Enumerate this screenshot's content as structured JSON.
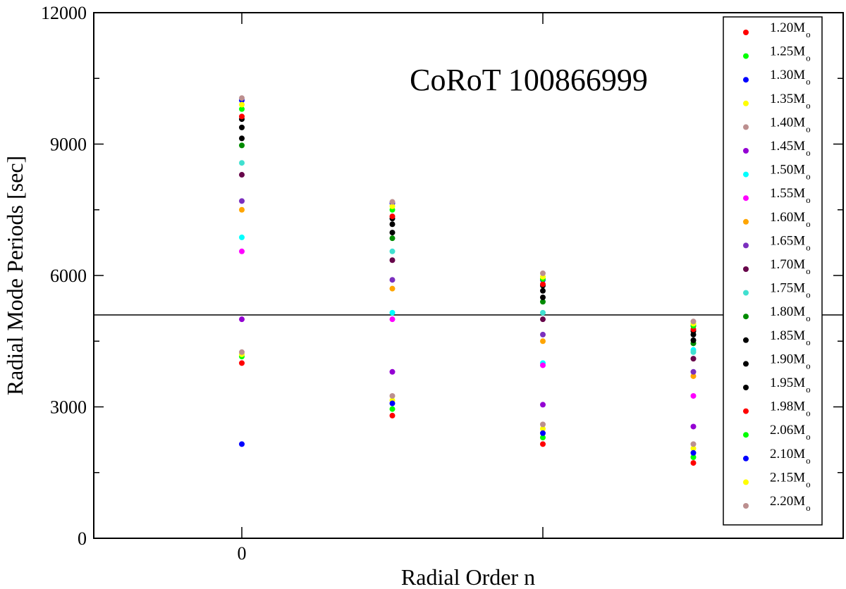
{
  "chart_data": {
    "type": "scatter",
    "title": "",
    "annotation": "CoRoT 100866999",
    "xlabel": "Radial Order n",
    "ylabel": "Radial Mode Periods [sec]",
    "xlim": [
      -1,
      4
    ],
    "ylim": [
      0,
      12000
    ],
    "x_tick_labels": [
      {
        "x": 0,
        "label": "0"
      }
    ],
    "x_major_ticks": [
      0,
      2
    ],
    "y_tick_labels": [
      "0",
      "3000",
      "6000",
      "9000",
      "12000"
    ],
    "y_ticks": [
      0,
      3000,
      6000,
      9000,
      12000
    ],
    "y_minor_ticks": [
      1500,
      4500,
      7500,
      10500
    ],
    "reference_line_y": 5100,
    "legend_position": "top-right",
    "legend_subscript": "o",
    "series": [
      {
        "name": "1.20M",
        "color": "#ff0000",
        "points": [
          [
            0,
            4000
          ],
          [
            1,
            2800
          ],
          [
            2,
            2150
          ],
          [
            3,
            1720
          ]
        ]
      },
      {
        "name": "1.25M",
        "color": "#00ff00",
        "points": [
          [
            0,
            4150
          ],
          [
            1,
            2950
          ],
          [
            2,
            2300
          ],
          [
            3,
            1850
          ]
        ]
      },
      {
        "name": "1.30M",
        "color": "#0000ff",
        "points": [
          [
            0,
            10000
          ],
          [
            1,
            7650
          ],
          [
            2,
            5900
          ],
          [
            3,
            4850
          ]
        ]
      },
      {
        "name": "1.35M",
        "color": "#ffff00",
        "points": [
          [
            0,
            4200
          ],
          [
            1,
            3150
          ],
          [
            2,
            2500
          ],
          [
            3,
            2050
          ]
        ]
      },
      {
        "name": "1.40M",
        "color": "#bc8f8f",
        "points": [
          [
            0,
            4250
          ],
          [
            1,
            3250
          ],
          [
            2,
            2600
          ],
          [
            3,
            2150
          ]
        ]
      },
      {
        "name": "1.45M",
        "color": "#9400d3",
        "points": [
          [
            0,
            5000
          ],
          [
            1,
            3800
          ],
          [
            2,
            3050
          ],
          [
            3,
            2550
          ]
        ]
      },
      {
        "name": "1.50M",
        "color": "#00ffff",
        "points": [
          [
            0,
            6870
          ],
          [
            1,
            5150
          ],
          [
            2,
            4000
          ],
          [
            3,
            4300
          ]
        ]
      },
      {
        "name": "1.55M",
        "color": "#ff00ff",
        "points": [
          [
            0,
            6550
          ],
          [
            1,
            5000
          ],
          [
            2,
            3950
          ],
          [
            3,
            3250
          ]
        ]
      },
      {
        "name": "1.60M",
        "color": "#ffa500",
        "points": [
          [
            0,
            7500
          ],
          [
            1,
            5700
          ],
          [
            2,
            4500
          ],
          [
            3,
            3700
          ]
        ]
      },
      {
        "name": "1.65M",
        "color": "#7b2fbe",
        "points": [
          [
            0,
            7700
          ],
          [
            1,
            5900
          ],
          [
            2,
            4650
          ],
          [
            3,
            3800
          ]
        ]
      },
      {
        "name": "1.70M",
        "color": "#67064a",
        "points": [
          [
            0,
            8300
          ],
          [
            1,
            6350
          ],
          [
            2,
            5000
          ],
          [
            3,
            4100
          ]
        ]
      },
      {
        "name": "1.75M",
        "color": "#40e0d0",
        "points": [
          [
            0,
            8570
          ],
          [
            1,
            6550
          ],
          [
            2,
            5150
          ],
          [
            3,
            4250
          ]
        ]
      },
      {
        "name": "1.80M",
        "color": "#008b00",
        "points": [
          [
            0,
            8970
          ],
          [
            1,
            6850
          ],
          [
            2,
            5400
          ],
          [
            3,
            4450
          ]
        ]
      },
      {
        "name": "1.85M",
        "color": "#000000",
        "points": [
          [
            0,
            9130
          ],
          [
            1,
            6980
          ],
          [
            2,
            5500
          ],
          [
            3,
            4520
          ]
        ]
      },
      {
        "name": "1.90M",
        "color": "#000000",
        "points": [
          [
            0,
            9380
          ],
          [
            1,
            7170
          ],
          [
            2,
            5650
          ],
          [
            3,
            4650
          ]
        ]
      },
      {
        "name": "1.95M",
        "color": "#000000",
        "points": [
          [
            0,
            9570
          ],
          [
            1,
            7300
          ],
          [
            2,
            5770
          ],
          [
            3,
            4730
          ]
        ]
      },
      {
        "name": "1.98M",
        "color": "#ff0000",
        "points": [
          [
            0,
            9630
          ],
          [
            1,
            7350
          ],
          [
            2,
            5800
          ],
          [
            3,
            4770
          ]
        ]
      },
      {
        "name": "2.06M",
        "color": "#00ff00",
        "points": [
          [
            0,
            9800
          ],
          [
            1,
            7500
          ],
          [
            2,
            5920
          ],
          [
            3,
            4850
          ]
        ]
      },
      {
        "name": "2.10M",
        "color": "#0000ff",
        "points": [
          [
            0,
            2150
          ],
          [
            1,
            3080
          ],
          [
            2,
            2400
          ],
          [
            3,
            1950
          ]
        ]
      },
      {
        "name": "2.15M",
        "color": "#ffff00",
        "points": [
          [
            0,
            9900
          ],
          [
            1,
            7580
          ],
          [
            2,
            5970
          ],
          [
            3,
            4900
          ]
        ]
      },
      {
        "name": "2.20M",
        "color": "#bc8f8f",
        "points": [
          [
            0,
            10050
          ],
          [
            1,
            7680
          ],
          [
            2,
            6050
          ],
          [
            3,
            4950
          ]
        ]
      }
    ]
  }
}
